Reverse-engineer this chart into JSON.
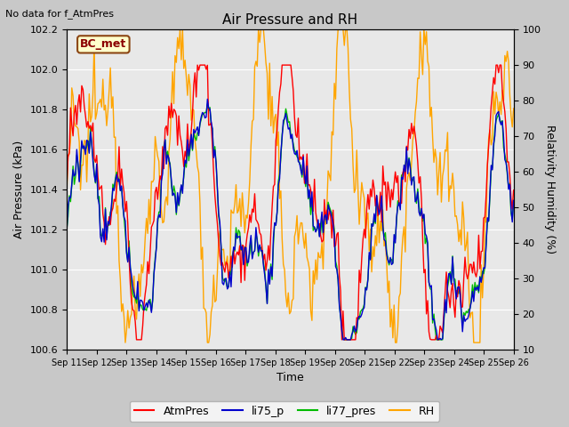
{
  "title": "Air Pressure and RH",
  "top_left_text": "No data for f_AtmPres",
  "box_label": "BC_met",
  "ylabel_left": "Air Pressure (kPa)",
  "ylabel_right": "Relativity Humidity (%)",
  "xlabel": "Time",
  "ylim_left": [
    100.6,
    102.2
  ],
  "ylim_right": [
    10,
    100
  ],
  "yticks_left": [
    100.6,
    100.8,
    101.0,
    101.2,
    101.4,
    101.6,
    101.8,
    102.0,
    102.2
  ],
  "yticks_right": [
    10,
    20,
    30,
    40,
    50,
    60,
    70,
    80,
    90,
    100
  ],
  "xtick_labels": [
    "Sep 11",
    "Sep 12",
    "Sep 13",
    "Sep 14",
    "Sep 15",
    "Sep 16",
    "Sep 17",
    "Sep 18",
    "Sep 19",
    "Sep 20",
    "Sep 21",
    "Sep 22",
    "Sep 23",
    "Sep 24",
    "Sep 25",
    "Sep 26"
  ],
  "colors": {
    "AtmPres": "#ff0000",
    "li75_p": "#0000cd",
    "li77_pres": "#00bb00",
    "RH": "#ffa500"
  },
  "background_color": "#c8c8c8",
  "plot_bg_color": "#e8e8e8",
  "linewidth": 1.0,
  "title_fontsize": 11,
  "label_fontsize": 9,
  "tick_fontsize": 8
}
